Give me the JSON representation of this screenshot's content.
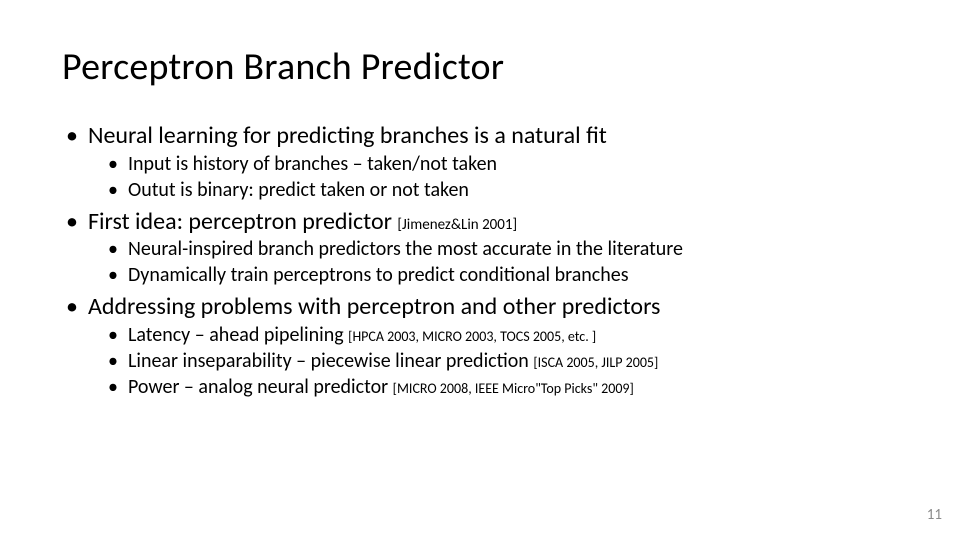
{
  "title": "Perceptron Branch Predictor",
  "page_number": "11",
  "colors": {
    "text": "#000000",
    "page_num": "#8b8b8b",
    "bg": "#ffffff"
  },
  "fonts": {
    "title_size": 38,
    "lvl1_size": 24,
    "lvl2_size": 20,
    "cite_size": 14
  },
  "bullets": [
    {
      "text": "Neural learning for predicting branches is a natural fit",
      "cite": "",
      "sub": [
        {
          "text": "Input is history of branches – taken/not taken",
          "cite": ""
        },
        {
          "text": "Outut is binary: predict taken or not taken",
          "cite": ""
        }
      ]
    },
    {
      "text": "First idea: perceptron predictor ",
      "cite": "[Jimenez&Lin 2001]",
      "sub": [
        {
          "text": "Neural-inspired branch predictors the most accurate in the literature",
          "cite": ""
        },
        {
          "text": "Dynamically train perceptrons to predict conditional branches",
          "cite": ""
        }
      ]
    },
    {
      "text": "Addressing problems with perceptron and other predictors",
      "cite": "",
      "sub": [
        {
          "text": "Latency  –  ahead pipelining ",
          "cite": "[HPCA 2003, MICRO 2003, TOCS 2005, etc. ]"
        },
        {
          "text": "Linear inseparability – piecewise linear prediction ",
          "cite": "[ISCA 2005, JILP 2005]"
        },
        {
          "text": "Power – analog neural predictor ",
          "cite": "[MICRO 2008, IEEE Micro\"Top Picks\" 2009]"
        }
      ]
    }
  ]
}
